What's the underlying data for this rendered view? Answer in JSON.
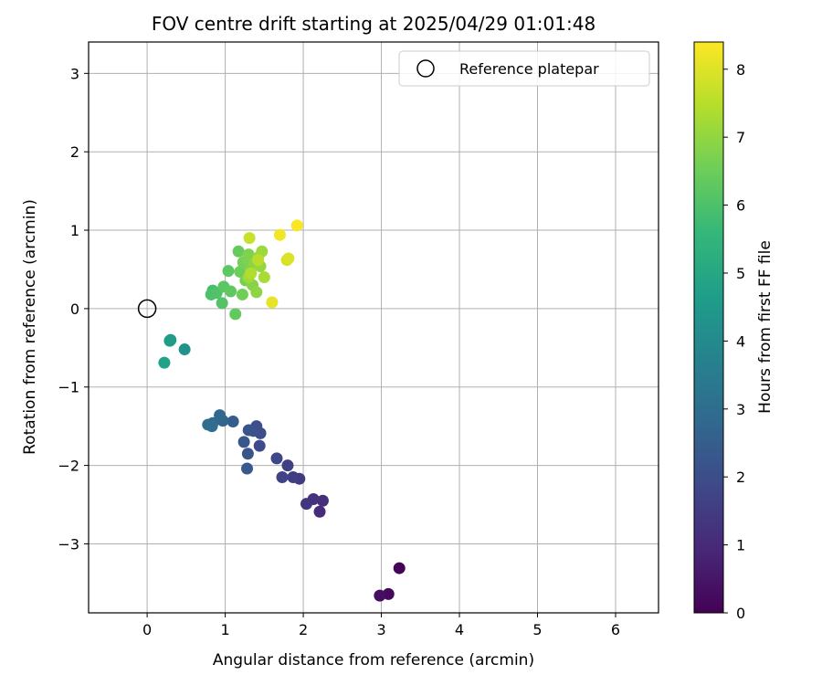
{
  "chart_data": {
    "type": "scatter",
    "title": "FOV centre drift starting at 2025/04/29 01:01:48",
    "xlabel": "Angular distance from reference (arcmin)",
    "ylabel": "Rotation from reference (arcmin)",
    "xlim": [
      -0.75,
      6.55
    ],
    "ylim": [
      -3.88,
      3.4
    ],
    "xticks": [
      0,
      1,
      2,
      3,
      4,
      5,
      6
    ],
    "yticks": [
      -3,
      -2,
      -1,
      0,
      1,
      2,
      3
    ],
    "xtick_labels": [
      "0",
      "1",
      "2",
      "3",
      "4",
      "5",
      "6"
    ],
    "ytick_labels": [
      "−3",
      "−2",
      "−1",
      "0",
      "1",
      "2",
      "3"
    ],
    "grid": true,
    "legend": {
      "placement": "top-right",
      "entries": [
        "Reference platepar"
      ]
    },
    "reference": {
      "label": "Reference platepar",
      "x": 0,
      "y": 0,
      "marker": "open-circle"
    },
    "colorbar": {
      "label": "Hours from first FF file",
      "min": 0,
      "max": 8.4,
      "ticks": [
        0,
        1,
        2,
        3,
        4,
        5,
        6,
        7,
        8
      ],
      "colormap": "viridis",
      "colors": [
        "#440154",
        "#482878",
        "#3e4989",
        "#31688e",
        "#26828e",
        "#1f9e89",
        "#35b779",
        "#6ece58",
        "#b5de2b",
        "#fde725"
      ]
    },
    "points": [
      {
        "x": 3.23,
        "y": -3.31,
        "t": 0.05
      },
      {
        "x": 3.09,
        "y": -3.64,
        "t": 0.2
      },
      {
        "x": 2.98,
        "y": -3.66,
        "t": 0.3
      },
      {
        "x": 2.21,
        "y": -2.59,
        "t": 1.0
      },
      {
        "x": 2.25,
        "y": -2.45,
        "t": 1.1
      },
      {
        "x": 2.13,
        "y": -2.43,
        "t": 1.2
      },
      {
        "x": 2.04,
        "y": -2.49,
        "t": 1.3
      },
      {
        "x": 1.95,
        "y": -2.17,
        "t": 1.45
      },
      {
        "x": 1.87,
        "y": -2.15,
        "t": 1.55
      },
      {
        "x": 1.8,
        "y": -2.0,
        "t": 1.6
      },
      {
        "x": 1.73,
        "y": -2.15,
        "t": 1.7
      },
      {
        "x": 1.66,
        "y": -1.91,
        "t": 1.8
      },
      {
        "x": 1.44,
        "y": -1.75,
        "t": 1.9
      },
      {
        "x": 1.45,
        "y": -1.59,
        "t": 2.0
      },
      {
        "x": 1.4,
        "y": -1.5,
        "t": 2.05
      },
      {
        "x": 1.36,
        "y": -1.56,
        "t": 2.1
      },
      {
        "x": 1.3,
        "y": -1.55,
        "t": 2.2
      },
      {
        "x": 1.29,
        "y": -1.85,
        "t": 2.25
      },
      {
        "x": 1.24,
        "y": -1.7,
        "t": 2.3
      },
      {
        "x": 1.28,
        "y": -2.04,
        "t": 2.35
      },
      {
        "x": 1.1,
        "y": -1.44,
        "t": 2.5
      },
      {
        "x": 0.97,
        "y": -1.43,
        "t": 2.7
      },
      {
        "x": 0.93,
        "y": -1.36,
        "t": 2.8
      },
      {
        "x": 0.84,
        "y": -1.46,
        "t": 2.9
      },
      {
        "x": 0.78,
        "y": -1.48,
        "t": 2.95
      },
      {
        "x": 0.83,
        "y": -1.5,
        "t": 3.0
      },
      {
        "x": 0.48,
        "y": -0.52,
        "t": 4.3
      },
      {
        "x": 0.3,
        "y": -0.4,
        "t": 4.5
      },
      {
        "x": 0.29,
        "y": -0.41,
        "t": 4.6
      },
      {
        "x": 0.22,
        "y": -0.69,
        "t": 4.8
      },
      {
        "x": 0.84,
        "y": 0.23,
        "t": 5.9
      },
      {
        "x": 0.82,
        "y": 0.18,
        "t": 6.0
      },
      {
        "x": 0.89,
        "y": 0.2,
        "t": 6.05
      },
      {
        "x": 0.96,
        "y": 0.07,
        "t": 6.1
      },
      {
        "x": 0.98,
        "y": 0.28,
        "t": 6.2
      },
      {
        "x": 1.04,
        "y": 0.48,
        "t": 6.25
      },
      {
        "x": 1.07,
        "y": 0.22,
        "t": 6.3
      },
      {
        "x": 1.13,
        "y": -0.07,
        "t": 6.35
      },
      {
        "x": 1.17,
        "y": 0.73,
        "t": 6.4
      },
      {
        "x": 1.19,
        "y": 0.47,
        "t": 6.5
      },
      {
        "x": 1.22,
        "y": 0.18,
        "t": 6.55
      },
      {
        "x": 1.23,
        "y": 0.59,
        "t": 6.6
      },
      {
        "x": 1.26,
        "y": 0.36,
        "t": 6.65
      },
      {
        "x": 1.28,
        "y": 0.62,
        "t": 6.7
      },
      {
        "x": 1.3,
        "y": 0.69,
        "t": 6.75
      },
      {
        "x": 1.32,
        "y": 0.5,
        "t": 6.8
      },
      {
        "x": 1.35,
        "y": 0.3,
        "t": 6.85
      },
      {
        "x": 1.37,
        "y": 0.58,
        "t": 6.9
      },
      {
        "x": 1.4,
        "y": 0.21,
        "t": 6.95
      },
      {
        "x": 1.42,
        "y": 0.65,
        "t": 7.0
      },
      {
        "x": 1.45,
        "y": 0.54,
        "t": 7.05
      },
      {
        "x": 1.47,
        "y": 0.73,
        "t": 7.15
      },
      {
        "x": 1.3,
        "y": 0.4,
        "t": 7.2
      },
      {
        "x": 1.5,
        "y": 0.4,
        "t": 7.3
      },
      {
        "x": 1.33,
        "y": 0.45,
        "t": 7.4
      },
      {
        "x": 1.42,
        "y": 0.62,
        "t": 7.5
      },
      {
        "x": 1.31,
        "y": 0.9,
        "t": 7.7
      },
      {
        "x": 1.79,
        "y": 0.62,
        "t": 7.85
      },
      {
        "x": 1.81,
        "y": 0.64,
        "t": 7.95
      },
      {
        "x": 1.6,
        "y": 0.08,
        "t": 8.1
      },
      {
        "x": 1.7,
        "y": 0.94,
        "t": 8.25
      },
      {
        "x": 1.92,
        "y": 1.06,
        "t": 8.35
      }
    ]
  }
}
